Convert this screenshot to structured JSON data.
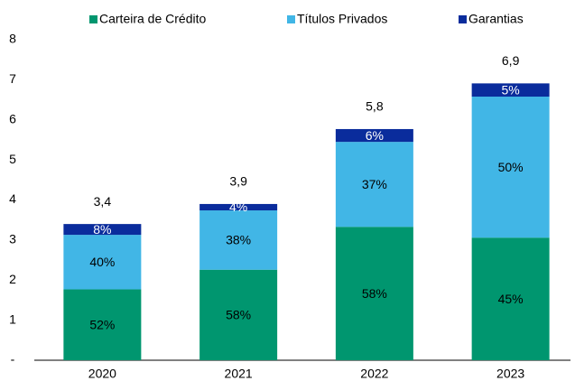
{
  "chart_data": {
    "type": "stacked_bar",
    "categories": [
      "2020",
      "2021",
      "2022",
      "2023"
    ],
    "series": [
      {
        "name": "Carteira de Crédito",
        "color": "#00966f",
        "values": [
          1.77,
          2.26,
          3.33,
          3.06
        ],
        "shares": [
          52,
          58,
          58,
          45
        ],
        "share_labels": [
          "52%",
          "58%",
          "58%",
          "45%"
        ]
      },
      {
        "name": "Títulos Privados",
        "color": "#41b6e6",
        "values": [
          1.36,
          1.48,
          2.12,
          3.52
        ],
        "shares": [
          40,
          38,
          37,
          50
        ],
        "share_labels": [
          "40%",
          "38%",
          "37%",
          "50%"
        ]
      },
      {
        "name": "Garantias",
        "color": "#0a2c9c",
        "values": [
          0.27,
          0.16,
          0.32,
          0.33
        ],
        "shares": [
          8,
          4,
          6,
          5
        ],
        "share_labels": [
          "8%",
          "4%",
          "6%",
          "5%"
        ]
      }
    ],
    "totals": [
      3.4,
      3.9,
      5.8,
      6.9
    ],
    "total_labels": [
      "3,4",
      "3,9",
      "5,8",
      "6,9"
    ],
    "ylim": [
      0,
      8
    ],
    "yticks": [
      {
        "value": 0,
        "label": "-"
      },
      1,
      2,
      3,
      4,
      5,
      6,
      7,
      8
    ],
    "grid": false,
    "legend": "top"
  }
}
